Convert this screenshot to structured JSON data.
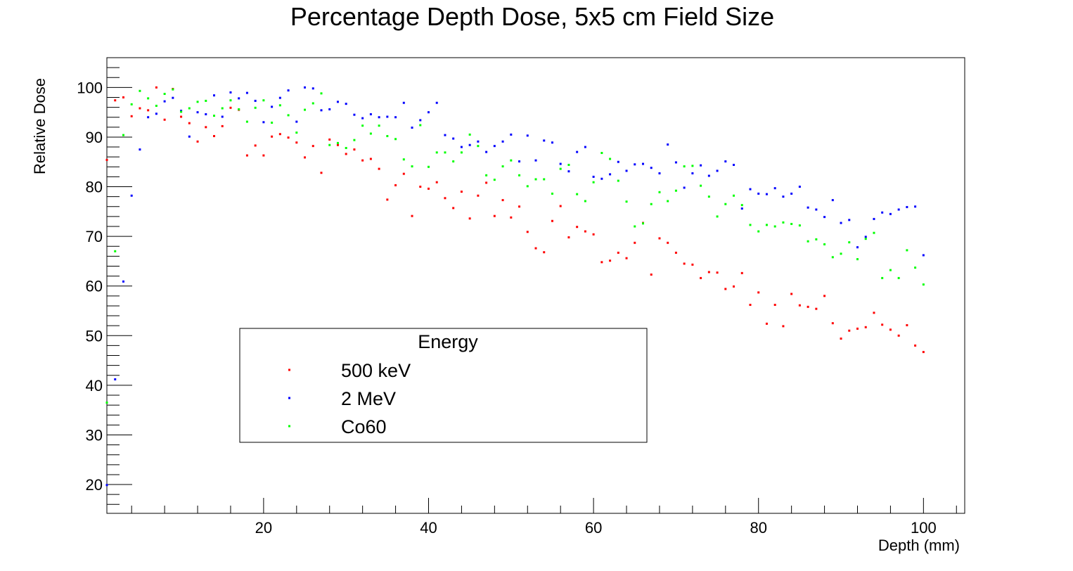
{
  "chart_data": {
    "type": "scatter",
    "title": "Percentage Depth Dose, 5x5 cm Field Size",
    "xlabel": "Depth (mm)",
    "ylabel": "Relative Dose",
    "xlim": [
      1,
      105
    ],
    "ylim": [
      14.2,
      106
    ],
    "x_ticks": [
      20,
      40,
      60,
      80,
      100
    ],
    "y_ticks": [
      20,
      30,
      40,
      50,
      60,
      70,
      80,
      90,
      100
    ],
    "grid": false,
    "legend": {
      "title": "Energy",
      "placement": "lower-left"
    },
    "series": [
      {
        "name": "500 keV",
        "color": "#ff0000",
        "x": [
          1,
          2,
          3,
          4,
          5,
          6,
          7,
          8,
          9,
          10,
          11,
          12,
          13,
          14,
          15,
          16,
          17,
          18,
          19,
          20,
          21,
          22,
          23,
          24,
          25,
          26,
          27,
          28,
          29,
          30,
          31,
          32,
          33,
          34,
          35,
          36,
          37,
          38,
          39,
          40,
          41,
          42,
          43,
          44,
          45,
          46,
          47,
          48,
          49,
          50,
          51,
          52,
          53,
          54,
          55,
          56,
          57,
          58,
          59,
          60,
          61,
          62,
          63,
          64,
          65,
          66,
          67,
          68,
          69,
          70,
          71,
          72,
          73,
          74,
          75,
          76,
          77,
          78,
          79,
          80,
          81,
          82,
          83,
          84,
          85,
          86,
          87,
          88,
          89,
          90,
          91,
          92,
          93,
          94,
          95,
          96,
          97,
          98,
          99,
          100
        ],
        "y": [
          85.4,
          97.4,
          98.0,
          94.2,
          95.8,
          95.4,
          100.0,
          93.5,
          99.7,
          94.1,
          92.8,
          89.1,
          92.0,
          90.2,
          92.2,
          95.9,
          95.5,
          86.3,
          88.3,
          86.3,
          90.1,
          90.6,
          89.9,
          88.9,
          85.9,
          88.2,
          82.8,
          89.5,
          88.4,
          86.6,
          87.5,
          85.3,
          85.6,
          83.6,
          77.4,
          80.3,
          82.6,
          74.1,
          80.0,
          79.6,
          80.9,
          77.7,
          75.7,
          79.0,
          73.6,
          78.2,
          80.8,
          74.1,
          77.3,
          73.8,
          76.0,
          70.9,
          67.6,
          66.8,
          73.1,
          76.1,
          69.8,
          71.9,
          71.0,
          70.4,
          64.8,
          65.1,
          66.7,
          65.6,
          68.7,
          72.7,
          62.3,
          69.6,
          68.7,
          66.7,
          64.5,
          64.3,
          61.6,
          62.8,
          62.7,
          59.4,
          59.9,
          62.6,
          56.2,
          58.7,
          52.4,
          56.2,
          51.9,
          58.4,
          56.1,
          55.8,
          55.4,
          58.0,
          52.5,
          49.4,
          51.0,
          51.4,
          51.7,
          54.6,
          52.2,
          51.2,
          50.0,
          52.1,
          48.0,
          46.7
        ]
      },
      {
        "name": "2 MeV",
        "color": "#0000ff",
        "x": [
          1,
          2,
          3,
          4,
          5,
          6,
          7,
          8,
          9,
          10,
          11,
          12,
          13,
          14,
          15,
          16,
          17,
          18,
          19,
          20,
          21,
          22,
          23,
          24,
          25,
          26,
          27,
          28,
          29,
          30,
          31,
          32,
          33,
          34,
          35,
          36,
          37,
          38,
          39,
          40,
          41,
          42,
          43,
          44,
          45,
          46,
          47,
          48,
          49,
          50,
          51,
          52,
          53,
          54,
          55,
          56,
          57,
          58,
          59,
          60,
          61,
          62,
          63,
          64,
          65,
          66,
          67,
          68,
          69,
          70,
          71,
          72,
          73,
          74,
          75,
          76,
          77,
          78,
          79,
          80,
          81,
          82,
          83,
          84,
          85,
          86,
          87,
          88,
          89,
          90,
          91,
          92,
          93,
          94,
          95,
          96,
          97,
          98,
          99,
          100
        ],
        "y": [
          19.9,
          41.2,
          60.9,
          78.2,
          87.5,
          94.0,
          94.7,
          97.2,
          97.9,
          95.3,
          90.1,
          95.0,
          94.6,
          98.4,
          94.1,
          99.0,
          97.8,
          98.9,
          97.3,
          93.0,
          96.1,
          97.9,
          99.4,
          93.1,
          100.0,
          99.8,
          95.4,
          95.6,
          97.1,
          96.7,
          94.5,
          93.8,
          94.6,
          94.0,
          94.1,
          94.0,
          96.9,
          91.9,
          93.4,
          95.0,
          96.9,
          90.4,
          89.7,
          88.0,
          88.4,
          89.1,
          87.0,
          88.2,
          89.1,
          90.5,
          85.1,
          90.3,
          85.3,
          89.3,
          88.9,
          84.6,
          83.1,
          87.0,
          88.0,
          82.0,
          81.6,
          82.5,
          85.0,
          83.2,
          84.5,
          84.6,
          83.8,
          82.7,
          88.5,
          84.9,
          79.8,
          82.7,
          84.3,
          82.2,
          83.2,
          85.1,
          84.4,
          75.6,
          79.5,
          78.6,
          78.5,
          79.7,
          78.0,
          78.6,
          80.0,
          75.8,
          75.4,
          73.9,
          77.3,
          72.7,
          73.3,
          67.8,
          69.9,
          73.5,
          74.8,
          74.5,
          75.4,
          75.9,
          76.0,
          66.2
        ]
      },
      {
        "name": "Co60",
        "color": "#00ff00",
        "x": [
          1,
          2,
          3,
          4,
          5,
          6,
          7,
          8,
          9,
          10,
          11,
          12,
          13,
          14,
          15,
          16,
          17,
          18,
          19,
          20,
          21,
          22,
          23,
          24,
          25,
          26,
          27,
          28,
          29,
          30,
          31,
          32,
          33,
          34,
          35,
          36,
          37,
          38,
          39,
          40,
          41,
          42,
          43,
          44,
          45,
          46,
          47,
          48,
          49,
          50,
          51,
          52,
          53,
          54,
          55,
          56,
          57,
          58,
          59,
          60,
          61,
          62,
          63,
          64,
          65,
          66,
          67,
          68,
          69,
          70,
          71,
          72,
          73,
          74,
          75,
          76,
          77,
          78,
          79,
          80,
          81,
          82,
          83,
          84,
          85,
          86,
          87,
          88,
          89,
          90,
          91,
          92,
          93,
          94,
          95,
          96,
          97,
          98,
          99,
          100
        ],
        "y": [
          36.5,
          67.0,
          90.4,
          96.6,
          99.3,
          97.8,
          96.3,
          98.7,
          99.6,
          95.1,
          95.8,
          97.1,
          97.3,
          94.3,
          95.8,
          97.4,
          95.6,
          93.1,
          95.9,
          97.4,
          92.9,
          96.4,
          94.4,
          90.9,
          95.5,
          96.8,
          98.8,
          88.4,
          88.8,
          87.8,
          89.4,
          92.3,
          90.7,
          92.3,
          90.2,
          89.6,
          85.5,
          84.1,
          92.4,
          84.0,
          86.9,
          86.9,
          85.1,
          86.9,
          90.5,
          88.2,
          82.3,
          81.4,
          84.1,
          85.3,
          82.3,
          80.1,
          81.5,
          81.5,
          78.6,
          83.6,
          84.4,
          78.5,
          77.1,
          80.9,
          86.8,
          85.6,
          81.2,
          77.0,
          72.0,
          72.6,
          76.5,
          78.9,
          77.1,
          79.2,
          84.1,
          84.2,
          80.2,
          78.0,
          74.0,
          76.5,
          78.2,
          76.3,
          72.3,
          71.0,
          72.3,
          72.0,
          72.8,
          72.5,
          72.2,
          69.0,
          69.4,
          68.4,
          65.8,
          66.5,
          68.8,
          65.4,
          69.5,
          70.7,
          61.6,
          63.2,
          61.6,
          67.2,
          63.7,
          60.3
        ]
      }
    ]
  }
}
